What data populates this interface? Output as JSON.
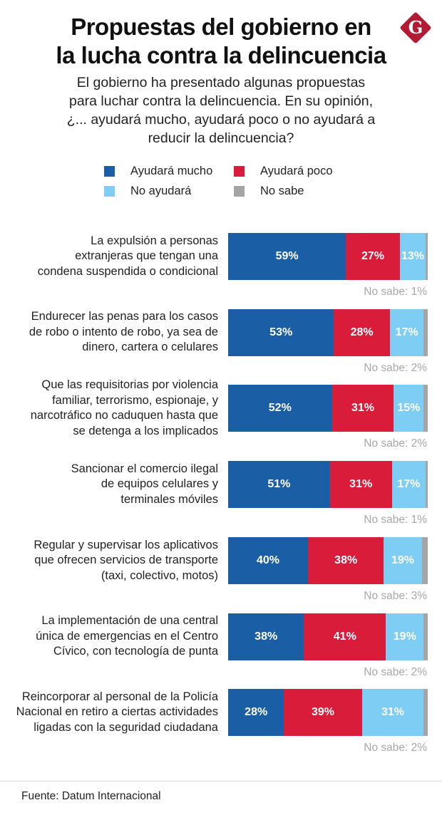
{
  "header": {
    "title_lines": [
      "Propuestas del gobierno en",
      "la lucha contra la delincuencia"
    ],
    "subtitle_lines": [
      "El gobierno ha presentado algunas propuestas",
      "para luchar contra la delincuencia. En su opinión,",
      "¿... ayudará mucho, ayudará poco o no ayudará a",
      "reducir la delincuencia?"
    ],
    "logo_letter": "G",
    "logo_color": "#b31b34"
  },
  "footer": {
    "source": "Fuente: Datum Internacional"
  },
  "chart_data": {
    "type": "bar",
    "orientation": "horizontal-stacked-100",
    "title": "Propuestas del gobierno en la lucha contra la delincuencia",
    "subtitle": "El gobierno ha presentado algunas propuestas para luchar contra la delincuencia. En su opinión, ¿... ayudará mucho, ayudará poco o no ayudará a reducir la delincuencia?",
    "legend_position": "top-center",
    "series": [
      {
        "name": "Ayudará mucho",
        "color": "#1a5fa5",
        "values": [
          59,
          53,
          52,
          51,
          40,
          38,
          28
        ]
      },
      {
        "name": "Ayudará poco",
        "color": "#d81c3a",
        "values": [
          27,
          28,
          31,
          31,
          38,
          41,
          39
        ]
      },
      {
        "name": "No ayudará",
        "color": "#7dcdf5",
        "values": [
          13,
          17,
          15,
          17,
          19,
          19,
          31
        ]
      },
      {
        "name": "No sabe",
        "color": "#a5a5a5",
        "values": [
          1,
          2,
          2,
          1,
          3,
          2,
          2
        ]
      }
    ],
    "categories": [
      [
        "La expulsión a personas",
        "extranjeras que tengan una",
        "condena suspendida o condicional"
      ],
      [
        "Endurecer las penas para los casos",
        "de robo o intento de robo, ya sea de",
        "dinero, cartera o celulares"
      ],
      [
        "Que las requisitorias por violencia",
        "familiar, terrorismo, espionaje, y",
        "narcotráfico no caduquen hasta que",
        "se detenga a los implicados"
      ],
      [
        "Sancionar el comercio ilegal",
        "de equipos celulares y",
        "terminales móviles"
      ],
      [
        "Regular y supervisar los aplicativos",
        "que ofrecen servicios de transporte",
        "(taxi, colectivo, motos)"
      ],
      [
        "La implementación de una central",
        "única de emergencias en el Centro",
        "Cívico, con tecnología de punta"
      ],
      [
        "Reincorporar al personal de la Policía",
        "Nacional en retiro a ciertas actividades",
        "ligadas con la seguridad ciudadana"
      ]
    ],
    "nosabe_label_prefix": "No sabe: ",
    "value_suffix": "%",
    "xlim": [
      0,
      100
    ]
  }
}
